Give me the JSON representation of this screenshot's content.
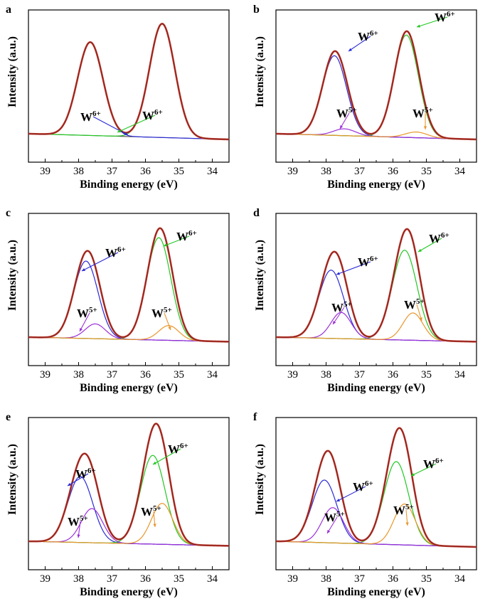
{
  "figure": {
    "xlabel": "Binding energy (eV)",
    "ylabel": "Intensity (a.u.)",
    "x_ticks": [
      "39",
      "38",
      "37",
      "36",
      "35",
      "34"
    ],
    "xlim": [
      39.5,
      33.5
    ],
    "x_direction": "reversed",
    "y_ticks": "none",
    "colors": {
      "data": "#c0392b",
      "envelope": "#7a1f1f",
      "w6_low": "#2b2bd6",
      "w6_high": "#22c722",
      "w5_low": "#9b30d9",
      "w5_high": "#e8962a",
      "background": "#333333"
    }
  },
  "chart_data": [
    {
      "type": "line",
      "panel": "a",
      "xlabel": "Binding energy (eV)",
      "ylabel": "Intensity (a.u.)",
      "xlim": [
        39.5,
        33.5
      ],
      "background": [
        0.0,
        -0.05
      ],
      "peaks": [
        {
          "state": "W6+",
          "center": 37.65,
          "height": 0.82,
          "sigma": 0.38
        },
        {
          "state": "W6+",
          "center": 35.5,
          "height": 1.0,
          "sigma": 0.38
        }
      ],
      "annotations": [
        {
          "text": "W",
          "sup": "6+",
          "target": "W6+ 4f7/2 component"
        },
        {
          "text": "W",
          "sup": "6+",
          "target": "W6+ 4f5/2 component"
        }
      ]
    },
    {
      "type": "line",
      "panel": "b",
      "xlabel": "Binding energy (eV)",
      "ylabel": "Intensity (a.u.)",
      "xlim": [
        39.5,
        33.5
      ],
      "background": [
        0.0,
        -0.05
      ],
      "peaks": [
        {
          "state": "W6+",
          "center": 37.75,
          "height": 0.7,
          "sigma": 0.36
        },
        {
          "state": "W6+",
          "center": 35.6,
          "height": 0.9,
          "sigma": 0.36
        },
        {
          "state": "W5+",
          "center": 37.45,
          "height": 0.06,
          "sigma": 0.33
        },
        {
          "state": "W5+",
          "center": 35.3,
          "height": 0.05,
          "sigma": 0.33
        }
      ],
      "annotations": [
        {
          "text": "W",
          "sup": "6+"
        },
        {
          "text": "W",
          "sup": "6+"
        },
        {
          "text": "W",
          "sup": "5+"
        },
        {
          "text": "W",
          "sup": "5+"
        }
      ]
    },
    {
      "type": "line",
      "panel": "c",
      "xlabel": "Binding energy (eV)",
      "ylabel": "Intensity (a.u.)",
      "xlim": [
        39.5,
        33.5
      ],
      "background": [
        0.0,
        -0.04
      ],
      "peaks": [
        {
          "state": "W6+",
          "center": 37.78,
          "height": 0.68,
          "sigma": 0.36
        },
        {
          "state": "W6+",
          "center": 35.6,
          "height": 0.9,
          "sigma": 0.36
        },
        {
          "state": "W5+",
          "center": 37.5,
          "height": 0.13,
          "sigma": 0.3
        },
        {
          "state": "W5+",
          "center": 35.3,
          "height": 0.13,
          "sigma": 0.3
        }
      ],
      "annotations": [
        {
          "text": "W",
          "sup": "6+"
        },
        {
          "text": "W",
          "sup": "6+"
        },
        {
          "text": "W",
          "sup": "5+"
        },
        {
          "text": "W",
          "sup": "5+"
        }
      ]
    },
    {
      "type": "line",
      "panel": "d",
      "xlabel": "Binding energy (eV)",
      "ylabel": "Intensity (a.u.)",
      "xlim": [
        39.5,
        33.5
      ],
      "background": [
        0.0,
        -0.04
      ],
      "peaks": [
        {
          "state": "W6+",
          "center": 37.85,
          "height": 0.6,
          "sigma": 0.37
        },
        {
          "state": "W6+",
          "center": 35.65,
          "height": 0.79,
          "sigma": 0.37
        },
        {
          "state": "W5+",
          "center": 37.55,
          "height": 0.23,
          "sigma": 0.3
        },
        {
          "state": "W5+",
          "center": 35.4,
          "height": 0.24,
          "sigma": 0.3
        }
      ],
      "annotations": [
        {
          "text": "W",
          "sup": "6+"
        },
        {
          "text": "W",
          "sup": "6+"
        },
        {
          "text": "W",
          "sup": "5+"
        },
        {
          "text": "W",
          "sup": "5+"
        }
      ]
    },
    {
      "type": "line",
      "panel": "e",
      "xlabel": "Binding energy (eV)",
      "ylabel": "Intensity (a.u.)",
      "xlim": [
        39.5,
        33.5
      ],
      "background": [
        0.0,
        -0.04
      ],
      "peaks": [
        {
          "state": "W6+",
          "center": 37.95,
          "height": 0.58,
          "sigma": 0.37
        },
        {
          "state": "W6+",
          "center": 35.78,
          "height": 0.78,
          "sigma": 0.37
        },
        {
          "state": "W5+",
          "center": 37.6,
          "height": 0.3,
          "sigma": 0.32
        },
        {
          "state": "W5+",
          "center": 35.5,
          "height": 0.36,
          "sigma": 0.32
        }
      ],
      "annotations": [
        {
          "text": "W",
          "sup": "6+"
        },
        {
          "text": "W",
          "sup": "6+"
        },
        {
          "text": "W",
          "sup": "5+"
        },
        {
          "text": "W",
          "sup": "5+"
        }
      ]
    },
    {
      "type": "line",
      "panel": "f",
      "xlabel": "Binding energy (eV)",
      "ylabel": "Intensity (a.u.)",
      "xlim": [
        39.5,
        33.5
      ],
      "background": [
        0.0,
        -0.05
      ],
      "peaks": [
        {
          "state": "W6+",
          "center": 38.05,
          "height": 0.55,
          "sigma": 0.37
        },
        {
          "state": "W6+",
          "center": 35.9,
          "height": 0.73,
          "sigma": 0.37
        },
        {
          "state": "W5+",
          "center": 37.8,
          "height": 0.31,
          "sigma": 0.32
        },
        {
          "state": "W5+",
          "center": 35.65,
          "height": 0.36,
          "sigma": 0.32
        }
      ],
      "annotations": [
        {
          "text": "W",
          "sup": "6+"
        },
        {
          "text": "W",
          "sup": "6+"
        },
        {
          "text": "W",
          "sup": "5+"
        },
        {
          "text": "W",
          "sup": "5+"
        }
      ]
    }
  ]
}
